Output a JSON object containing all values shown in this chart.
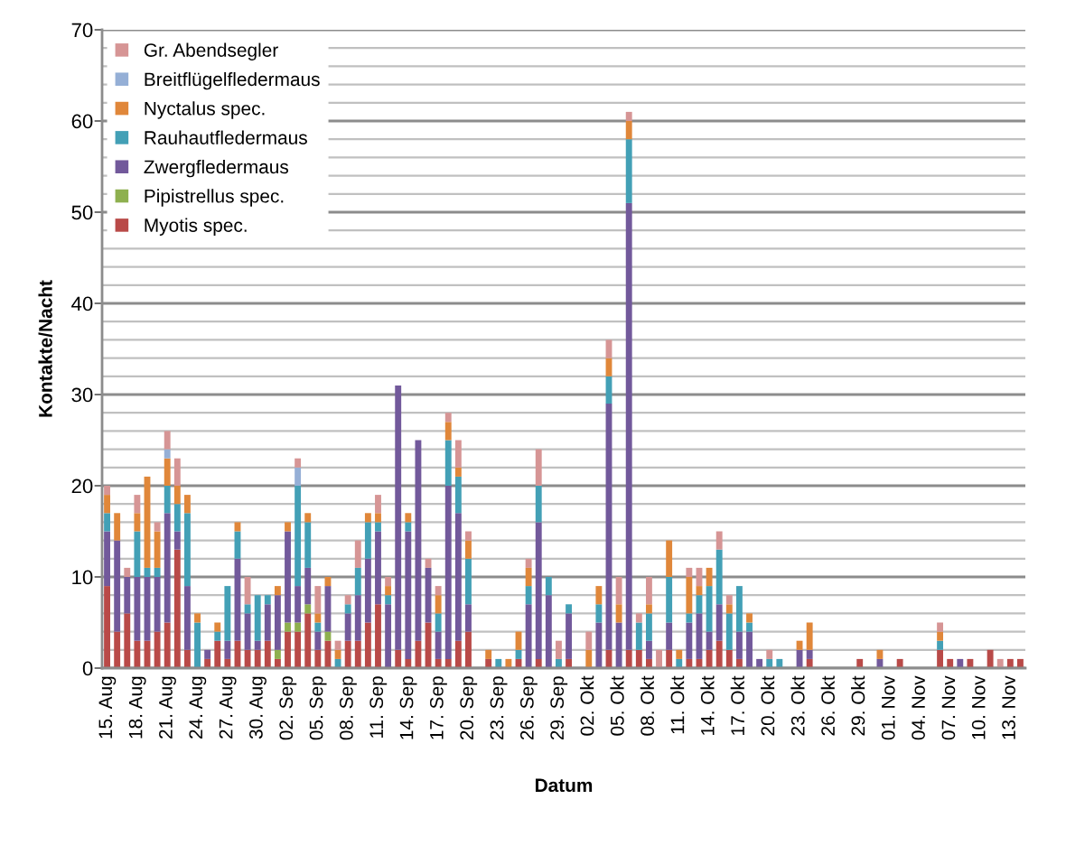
{
  "chart_data": {
    "type": "bar",
    "stacked": true,
    "xlabel": "Datum",
    "ylabel": "Kontakte/Nacht",
    "categories": [
      "15. Aug",
      null,
      null,
      "18. Aug",
      null,
      null,
      "21. Aug",
      null,
      null,
      "24. Aug",
      null,
      null,
      "27. Aug",
      null,
      null,
      "30. Aug",
      null,
      null,
      "02. Sep",
      null,
      null,
      "05. Sep",
      null,
      null,
      "08. Sep",
      null,
      null,
      "11. Sep",
      null,
      null,
      "14. Sep",
      null,
      null,
      "17. Sep",
      null,
      null,
      "20. Sep",
      null,
      null,
      "23. Sep",
      null,
      null,
      "26. Sep",
      null,
      null,
      "29. Sep",
      null,
      null,
      "02. Okt",
      null,
      null,
      "05. Okt",
      null,
      null,
      "08. Okt",
      null,
      null,
      "11. Okt",
      null,
      null,
      "14. Okt",
      null,
      null,
      "17. Okt",
      null,
      null,
      "20. Okt",
      null,
      null,
      "23. Okt",
      null,
      null,
      "26. Okt",
      null,
      null,
      "29. Okt",
      null,
      null,
      "01. Nov",
      null,
      null,
      "04. Nov",
      null,
      null,
      "07. Nov",
      null,
      null,
      "10. Nov",
      null,
      null,
      "13. Nov",
      null
    ],
    "series": [
      {
        "name": "Myotis spec.",
        "color": "#b94a48",
        "values": [
          9,
          4,
          6,
          3,
          3,
          4,
          5,
          13,
          2,
          0,
          1,
          3,
          1,
          3,
          2,
          2,
          3,
          1,
          4,
          4,
          6,
          2,
          3,
          0,
          3,
          3,
          5,
          7,
          0,
          2,
          1,
          3,
          5,
          1,
          1,
          3,
          4,
          0,
          1,
          0,
          0,
          1,
          0,
          1,
          0,
          0,
          1,
          0,
          0,
          0,
          2,
          0,
          2,
          2,
          1,
          0,
          2,
          0,
          1,
          1,
          2,
          3,
          2,
          1,
          0,
          0,
          0,
          0,
          0,
          0,
          1,
          0,
          0,
          0,
          0,
          1,
          0,
          0,
          0,
          1,
          0,
          0,
          0,
          2,
          1,
          0,
          1,
          0,
          2,
          0,
          1,
          1
        ]
      },
      {
        "name": "Pipistrellus spec.",
        "color": "#8eb04f",
        "values": [
          0,
          0,
          0,
          0,
          0,
          0,
          0,
          0,
          0,
          0,
          0,
          0,
          0,
          0,
          0,
          0,
          0,
          1,
          1,
          1,
          1,
          0,
          1,
          0,
          0,
          0,
          0,
          0,
          0,
          0,
          0,
          0,
          0,
          0,
          0,
          0,
          0,
          0,
          0,
          0,
          0,
          0,
          0,
          0,
          0,
          0,
          0,
          0,
          0,
          0,
          0,
          0,
          0,
          0,
          0,
          0,
          0,
          0,
          0,
          0,
          0,
          0,
          0,
          0,
          0,
          0,
          0,
          0,
          0,
          0,
          0,
          0,
          0,
          0,
          0,
          0,
          0,
          0,
          0,
          0,
          0,
          0,
          0,
          0,
          0,
          0,
          0,
          0,
          0,
          0,
          0,
          0
        ]
      },
      {
        "name": "Zwergfledermaus",
        "color": "#72599b",
        "values": [
          6,
          10,
          4,
          7,
          7,
          6,
          12,
          2,
          7,
          0,
          1,
          0,
          2,
          9,
          4,
          1,
          4,
          6,
          10,
          4,
          4,
          2,
          5,
          0,
          3,
          5,
          7,
          8,
          7,
          29,
          14,
          22,
          6,
          3,
          19,
          14,
          3,
          0,
          0,
          0,
          0,
          0,
          7,
          15,
          8,
          0,
          5,
          0,
          0,
          5,
          27,
          5,
          49,
          0,
          2,
          0,
          3,
          0,
          4,
          5,
          2,
          4,
          0,
          3,
          4,
          1,
          0,
          0,
          0,
          2,
          1,
          0,
          0,
          0,
          0,
          0,
          0,
          1,
          0,
          0,
          0,
          0,
          0,
          0,
          0,
          1,
          0,
          0,
          0,
          0,
          0,
          0
        ]
      },
      {
        "name": "Rauhautfledermaus",
        "color": "#43a0b6",
        "values": [
          2,
          0,
          0,
          5,
          1,
          1,
          3,
          3,
          8,
          5,
          0,
          1,
          6,
          3,
          1,
          5,
          1,
          0,
          0,
          11,
          5,
          1,
          0,
          1,
          1,
          3,
          4,
          1,
          1,
          0,
          1,
          0,
          0,
          2,
          5,
          4,
          5,
          0,
          0,
          1,
          0,
          1,
          2,
          4,
          2,
          1,
          1,
          0,
          0,
          2,
          3,
          0,
          7,
          3,
          3,
          0,
          5,
          1,
          1,
          2,
          5,
          6,
          4,
          5,
          1,
          0,
          1,
          1,
          0,
          0,
          0,
          0,
          0,
          0,
          0,
          0,
          0,
          0,
          0,
          0,
          0,
          0,
          0,
          1,
          0,
          0,
          0,
          0,
          0,
          0,
          0,
          0
        ]
      },
      {
        "name": "Nyctalus spec.",
        "color": "#e0873a",
        "values": [
          2,
          3,
          0,
          2,
          10,
          4,
          3,
          2,
          2,
          1,
          0,
          1,
          0,
          1,
          0,
          0,
          0,
          1,
          1,
          0,
          1,
          1,
          1,
          1,
          0,
          0,
          1,
          1,
          1,
          0,
          1,
          0,
          0,
          2,
          2,
          1,
          2,
          0,
          1,
          0,
          1,
          2,
          2,
          0,
          0,
          0,
          0,
          0,
          2,
          2,
          2,
          2,
          2,
          0,
          1,
          0,
          4,
          1,
          4,
          1,
          2,
          0,
          1,
          0,
          1,
          0,
          0,
          0,
          0,
          1,
          3,
          0,
          0,
          0,
          0,
          0,
          0,
          1,
          0,
          0,
          0,
          0,
          0,
          1,
          0,
          0,
          0,
          0,
          0,
          0,
          0,
          0
        ]
      },
      {
        "name": "Breitflügelfledermaus",
        "color": "#95afd6",
        "values": [
          0,
          0,
          0,
          0,
          0,
          0,
          1,
          0,
          0,
          0,
          0,
          0,
          0,
          0,
          0,
          0,
          0,
          0,
          0,
          2,
          0,
          0,
          0,
          0,
          0,
          0,
          0,
          0,
          0,
          0,
          0,
          0,
          0,
          0,
          0,
          0,
          0,
          0,
          0,
          0,
          0,
          0,
          0,
          0,
          0,
          0,
          0,
          0,
          0,
          0,
          0,
          0,
          0,
          0,
          0,
          0,
          0,
          0,
          0,
          0,
          0,
          0,
          0,
          0,
          0,
          0,
          0,
          0,
          0,
          0,
          0,
          0,
          0,
          0,
          0,
          0,
          0,
          0,
          0,
          0,
          0,
          0,
          0,
          0,
          0,
          0,
          0,
          0,
          0,
          0,
          0,
          0
        ]
      },
      {
        "name": "Gr. Abendsegler",
        "color": "#d69595",
        "values": [
          1,
          0,
          1,
          2,
          0,
          1,
          2,
          3,
          0,
          0,
          0,
          0,
          0,
          0,
          3,
          0,
          0,
          0,
          0,
          1,
          0,
          3,
          0,
          1,
          1,
          3,
          0,
          2,
          1,
          0,
          0,
          0,
          1,
          1,
          1,
          3,
          1,
          0,
          0,
          0,
          0,
          0,
          1,
          4,
          0,
          2,
          0,
          0,
          2,
          0,
          2,
          3,
          1,
          1,
          3,
          2,
          0,
          0,
          1,
          2,
          0,
          2,
          1,
          0,
          0,
          0,
          1,
          0,
          0,
          0,
          0,
          0,
          0,
          0,
          0,
          0,
          0,
          0,
          0,
          0,
          0,
          0,
          0,
          1,
          0,
          0,
          0,
          0,
          0,
          1,
          0,
          0
        ]
      }
    ],
    "ylim": [
      0,
      70
    ],
    "yticks": [
      0,
      {
        "value": 2,
        "label": null
      },
      {
        "value": 4,
        "label": null
      },
      {
        "value": 6,
        "label": null
      },
      {
        "value": 8,
        "label": null
      },
      10,
      {
        "value": 12,
        "label": null
      },
      {
        "value": 14,
        "label": null
      },
      {
        "value": 16,
        "label": null
      },
      {
        "value": 18,
        "label": null
      },
      20,
      {
        "value": 22,
        "label": null
      },
      {
        "value": 24,
        "label": null
      },
      {
        "value": 26,
        "label": null
      },
      {
        "value": 28,
        "label": null
      },
      30,
      {
        "value": 32,
        "label": null
      },
      {
        "value": 34,
        "label": null
      },
      {
        "value": 36,
        "label": null
      },
      {
        "value": 38,
        "label": null
      },
      40,
      {
        "value": 42,
        "label": null
      },
      {
        "value": 44,
        "label": null
      },
      {
        "value": 46,
        "label": null
      },
      {
        "value": 48,
        "label": null
      },
      50,
      {
        "value": 52,
        "label": null
      },
      {
        "value": 54,
        "label": null
      },
      {
        "value": 56,
        "label": null
      },
      {
        "value": 58,
        "label": null
      },
      60,
      {
        "value": 62,
        "label": null
      },
      {
        "value": 64,
        "label": null
      },
      {
        "value": 66,
        "label": null
      },
      {
        "value": 68,
        "label": null
      },
      70
    ],
    "grid": "y",
    "legend": "top left"
  }
}
